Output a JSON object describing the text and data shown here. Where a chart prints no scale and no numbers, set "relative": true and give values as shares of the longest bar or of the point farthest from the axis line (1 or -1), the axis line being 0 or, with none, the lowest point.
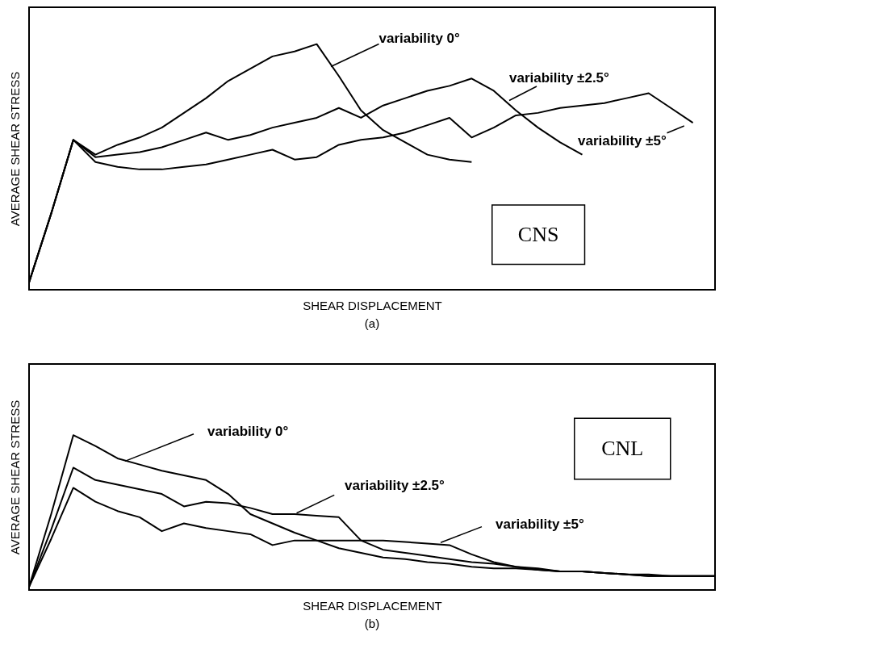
{
  "chart_data": [
    {
      "type": "line",
      "relative": true,
      "title": "(a)",
      "xlabel": "SHEAR DISPLACEMENT",
      "ylabel": "AVERAGE SHEAR STRESS",
      "tick_labels": false,
      "annotations": [
        "CNS"
      ],
      "categories": [
        null,
        null,
        null,
        null,
        null,
        null,
        null,
        null,
        null,
        null,
        null,
        null,
        null,
        null,
        null,
        null,
        null,
        null,
        null,
        null,
        null,
        null,
        null,
        null,
        null,
        null,
        null,
        null,
        null,
        null,
        null,
        null
      ],
      "series": [
        {
          "name": "variability 0°",
          "color": "#000000",
          "values": [
            0.03,
            0.31,
            0.61,
            0.55,
            0.59,
            0.62,
            0.66,
            0.72,
            0.78,
            0.85,
            0.9,
            0.95,
            0.97,
            1.0,
            0.87,
            0.73,
            0.65,
            0.6,
            0.55,
            0.53,
            0.52,
            null,
            null,
            null,
            null,
            null,
            null,
            null,
            null,
            null,
            null,
            null
          ]
        },
        {
          "name": "variability ±2.5°",
          "color": "#000000",
          "values": [
            0.03,
            0.31,
            0.61,
            0.54,
            0.55,
            0.56,
            0.58,
            0.61,
            0.64,
            0.61,
            0.63,
            0.66,
            0.68,
            0.7,
            0.74,
            0.7,
            0.75,
            0.78,
            0.81,
            0.83,
            0.86,
            0.81,
            0.73,
            0.66,
            0.6,
            0.55,
            null,
            null,
            null,
            null,
            null,
            null
          ]
        },
        {
          "name": "variability ±5°",
          "color": "#000000",
          "values": [
            0.03,
            0.31,
            0.61,
            0.52,
            0.5,
            0.49,
            0.49,
            0.5,
            0.51,
            0.53,
            0.55,
            0.57,
            0.53,
            0.54,
            0.59,
            0.61,
            0.62,
            0.64,
            0.67,
            0.7,
            0.62,
            0.66,
            0.71,
            0.72,
            0.74,
            0.75,
            0.76,
            0.78,
            0.8,
            0.74,
            0.68,
            null
          ]
        }
      ]
    },
    {
      "type": "line",
      "relative": true,
      "title": "(b)",
      "xlabel": "SHEAR DISPLACEMENT",
      "ylabel": "AVERAGE SHEAR STRESS",
      "tick_labels": false,
      "annotations": [
        "CNL"
      ],
      "categories": [
        null,
        null,
        null,
        null,
        null,
        null,
        null,
        null,
        null,
        null,
        null,
        null,
        null,
        null,
        null,
        null,
        null,
        null,
        null,
        null,
        null,
        null,
        null,
        null,
        null,
        null,
        null,
        null,
        null,
        null,
        null,
        null
      ],
      "series": [
        {
          "name": "variability 0°",
          "color": "#000000",
          "values": [
            0.02,
            0.49,
            1.0,
            0.93,
            0.85,
            0.81,
            0.77,
            0.74,
            0.71,
            0.62,
            0.49,
            0.43,
            0.37,
            0.32,
            0.27,
            0.24,
            0.21,
            0.2,
            0.18,
            0.17,
            0.15,
            0.14,
            0.14,
            0.13,
            0.12,
            0.12,
            0.11,
            0.1,
            0.1,
            0.09,
            0.09,
            0.09
          ]
        },
        {
          "name": "variability ±2.5°",
          "color": "#000000",
          "values": [
            0.02,
            0.39,
            0.79,
            0.71,
            0.68,
            0.65,
            0.62,
            0.54,
            0.57,
            0.56,
            0.53,
            0.49,
            0.49,
            0.48,
            0.47,
            0.32,
            0.26,
            0.24,
            0.22,
            0.2,
            0.18,
            0.17,
            0.15,
            0.13,
            0.12,
            0.12,
            0.11,
            0.1,
            0.09,
            0.09,
            0.09,
            0.09
          ]
        },
        {
          "name": "variability ±5°",
          "color": "#000000",
          "values": [
            0.02,
            0.33,
            0.66,
            0.57,
            0.51,
            0.47,
            0.38,
            0.43,
            0.4,
            0.38,
            0.36,
            0.29,
            0.32,
            0.32,
            0.32,
            0.32,
            0.32,
            0.31,
            0.3,
            0.29,
            0.23,
            0.18,
            0.15,
            0.14,
            0.12,
            0.12,
            0.11,
            0.1,
            0.09,
            0.09,
            0.09,
            0.09
          ]
        }
      ]
    }
  ]
}
